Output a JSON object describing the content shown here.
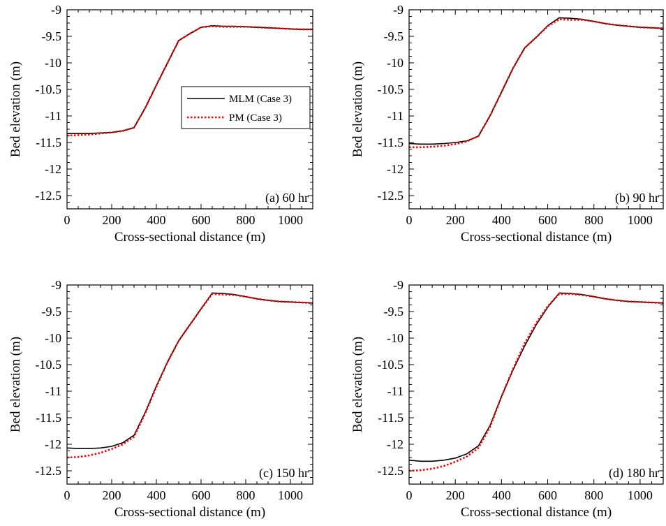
{
  "chart_data": [
    {
      "type": "line",
      "xlabel": "Cross-sectional distance (m)",
      "ylabel": "Bed elevation (m)",
      "xlim": [
        0,
        1100
      ],
      "ylim": [
        -12.75,
        -9
      ],
      "xticks": [
        "0",
        "200",
        "400",
        "600",
        "800",
        "1000"
      ],
      "yticks": [
        "-9",
        "-9.5",
        "-10",
        "-10.5",
        "-11",
        "-11.5",
        "-12",
        "-12.5"
      ],
      "annotation": "(a) 60 hr",
      "legend": {
        "placement": "center-right",
        "entries": [
          "MLM (Case 3)",
          "PM (Case 3)"
        ]
      },
      "series": [
        {
          "name": "MLM (Case 3)",
          "color": "#000000",
          "style": "solid",
          "x": [
            0,
            50,
            100,
            150,
            200,
            250,
            300,
            350,
            400,
            450,
            500,
            550,
            600,
            650,
            700,
            750,
            800,
            850,
            900,
            950,
            1000,
            1050,
            1100
          ],
          "y": [
            -11.33,
            -11.33,
            -11.33,
            -11.32,
            -11.31,
            -11.28,
            -11.22,
            -10.85,
            -10.42,
            -10.0,
            -9.58,
            -9.45,
            -9.33,
            -9.3,
            -9.31,
            -9.31,
            -9.32,
            -9.33,
            -9.34,
            -9.35,
            -9.36,
            -9.37,
            -9.37
          ]
        },
        {
          "name": "PM (Case 3)",
          "color": "#ff0000",
          "style": "dotted",
          "x": [
            0,
            50,
            100,
            150,
            200,
            250,
            300,
            350,
            400,
            450,
            500,
            550,
            600,
            650,
            700,
            750,
            800,
            850,
            900,
            950,
            1000,
            1050,
            1100
          ],
          "y": [
            -11.37,
            -11.36,
            -11.35,
            -11.33,
            -11.31,
            -11.28,
            -11.22,
            -10.85,
            -10.42,
            -10.0,
            -9.58,
            -9.45,
            -9.33,
            -9.31,
            -9.32,
            -9.32,
            -9.32,
            -9.33,
            -9.34,
            -9.35,
            -9.36,
            -9.37,
            -9.37
          ]
        }
      ]
    },
    {
      "type": "line",
      "xlabel": "Cross-sectional distance (m)",
      "ylabel": "Bed elevation (m)",
      "xlim": [
        0,
        1100
      ],
      "ylim": [
        -12.75,
        -9
      ],
      "xticks": [
        "0",
        "200",
        "400",
        "600",
        "800",
        "1000"
      ],
      "yticks": [
        "-9",
        "-9.5",
        "-10",
        "-10.5",
        "-11",
        "-11.5",
        "-12",
        "-12.5"
      ],
      "annotation": "(b) 90 hr",
      "series": [
        {
          "name": "MLM (Case 3)",
          "color": "#000000",
          "style": "solid",
          "x": [
            0,
            50,
            100,
            150,
            200,
            250,
            300,
            350,
            400,
            450,
            500,
            550,
            600,
            650,
            700,
            750,
            800,
            850,
            900,
            950,
            1000,
            1050,
            1100
          ],
          "y": [
            -11.52,
            -11.53,
            -11.53,
            -11.52,
            -11.5,
            -11.47,
            -11.38,
            -11.0,
            -10.55,
            -10.1,
            -9.72,
            -9.52,
            -9.3,
            -9.15,
            -9.16,
            -9.18,
            -9.22,
            -9.26,
            -9.29,
            -9.31,
            -9.33,
            -9.34,
            -9.35
          ]
        },
        {
          "name": "PM (Case 3)",
          "color": "#ff0000",
          "style": "dotted",
          "x": [
            0,
            50,
            100,
            150,
            200,
            250,
            300,
            350,
            400,
            450,
            500,
            550,
            600,
            650,
            700,
            750,
            800,
            850,
            900,
            950,
            1000,
            1050,
            1100
          ],
          "y": [
            -11.59,
            -11.59,
            -11.58,
            -11.56,
            -11.53,
            -11.48,
            -11.38,
            -11.0,
            -10.55,
            -10.1,
            -9.72,
            -9.52,
            -9.31,
            -9.18,
            -9.19,
            -9.19,
            -9.22,
            -9.26,
            -9.29,
            -9.31,
            -9.33,
            -9.34,
            -9.35
          ]
        }
      ]
    },
    {
      "type": "line",
      "xlabel": "Cross-sectional distance (m)",
      "ylabel": "Bed elevation (m)",
      "xlim": [
        0,
        1100
      ],
      "ylim": [
        -12.75,
        -9
      ],
      "xticks": [
        "0",
        "200",
        "400",
        "600",
        "800",
        "1000"
      ],
      "yticks": [
        "-9",
        "-9.5",
        "-10",
        "-10.5",
        "-11",
        "-11.5",
        "-12",
        "-12.5"
      ],
      "annotation": "(c) 150 hr",
      "series": [
        {
          "name": "MLM (Case 3)",
          "color": "#000000",
          "style": "solid",
          "x": [
            0,
            50,
            100,
            150,
            200,
            250,
            300,
            350,
            400,
            450,
            500,
            550,
            600,
            650,
            700,
            750,
            800,
            850,
            900,
            950,
            1000,
            1050,
            1100
          ],
          "y": [
            -12.07,
            -12.08,
            -12.08,
            -12.07,
            -12.04,
            -11.97,
            -11.83,
            -11.4,
            -10.9,
            -10.45,
            -10.05,
            -9.75,
            -9.45,
            -9.15,
            -9.16,
            -9.18,
            -9.22,
            -9.26,
            -9.29,
            -9.31,
            -9.32,
            -9.33,
            -9.34
          ]
        },
        {
          "name": "PM (Case 3)",
          "color": "#ff0000",
          "style": "dotted",
          "x": [
            0,
            50,
            100,
            150,
            200,
            250,
            300,
            350,
            400,
            450,
            500,
            550,
            600,
            650,
            700,
            750,
            800,
            850,
            900,
            950,
            1000,
            1050,
            1100
          ],
          "y": [
            -12.25,
            -12.24,
            -12.21,
            -12.16,
            -12.09,
            -12.0,
            -11.86,
            -11.42,
            -10.92,
            -10.45,
            -10.05,
            -9.75,
            -9.45,
            -9.17,
            -9.18,
            -9.19,
            -9.22,
            -9.26,
            -9.29,
            -9.31,
            -9.32,
            -9.33,
            -9.34
          ]
        }
      ]
    },
    {
      "type": "line",
      "xlabel": "Cross-sectional distance (m)",
      "ylabel": "Bed elevation (m)",
      "xlim": [
        0,
        1100
      ],
      "ylim": [
        -12.75,
        -9
      ],
      "xticks": [
        "0",
        "200",
        "400",
        "600",
        "800",
        "1000"
      ],
      "yticks": [
        "-9",
        "-9.5",
        "-10",
        "-10.5",
        "-11",
        "-11.5",
        "-12",
        "-12.5"
      ],
      "annotation": "(d) 180 hr",
      "series": [
        {
          "name": "MLM (Case 3)",
          "color": "#000000",
          "style": "solid",
          "x": [
            0,
            50,
            100,
            150,
            200,
            250,
            300,
            350,
            400,
            450,
            500,
            550,
            600,
            650,
            700,
            750,
            800,
            850,
            900,
            950,
            1000,
            1050,
            1100
          ],
          "y": [
            -12.3,
            -12.32,
            -12.32,
            -12.3,
            -12.26,
            -12.18,
            -12.03,
            -11.65,
            -11.1,
            -10.6,
            -10.15,
            -9.75,
            -9.42,
            -9.15,
            -9.16,
            -9.18,
            -9.22,
            -9.26,
            -9.29,
            -9.31,
            -9.32,
            -9.33,
            -9.34
          ]
        },
        {
          "name": "PM (Case 3)",
          "color": "#ff0000",
          "style": "dotted",
          "x": [
            0,
            50,
            100,
            150,
            200,
            250,
            300,
            350,
            400,
            450,
            500,
            550,
            600,
            650,
            700,
            750,
            800,
            850,
            900,
            950,
            1000,
            1050,
            1100
          ],
          "y": [
            -12.5,
            -12.49,
            -12.46,
            -12.41,
            -12.33,
            -12.23,
            -12.07,
            -11.68,
            -11.1,
            -10.58,
            -10.1,
            -9.72,
            -9.4,
            -9.17,
            -9.17,
            -9.19,
            -9.22,
            -9.26,
            -9.29,
            -9.31,
            -9.32,
            -9.33,
            -9.34
          ]
        }
      ]
    }
  ]
}
